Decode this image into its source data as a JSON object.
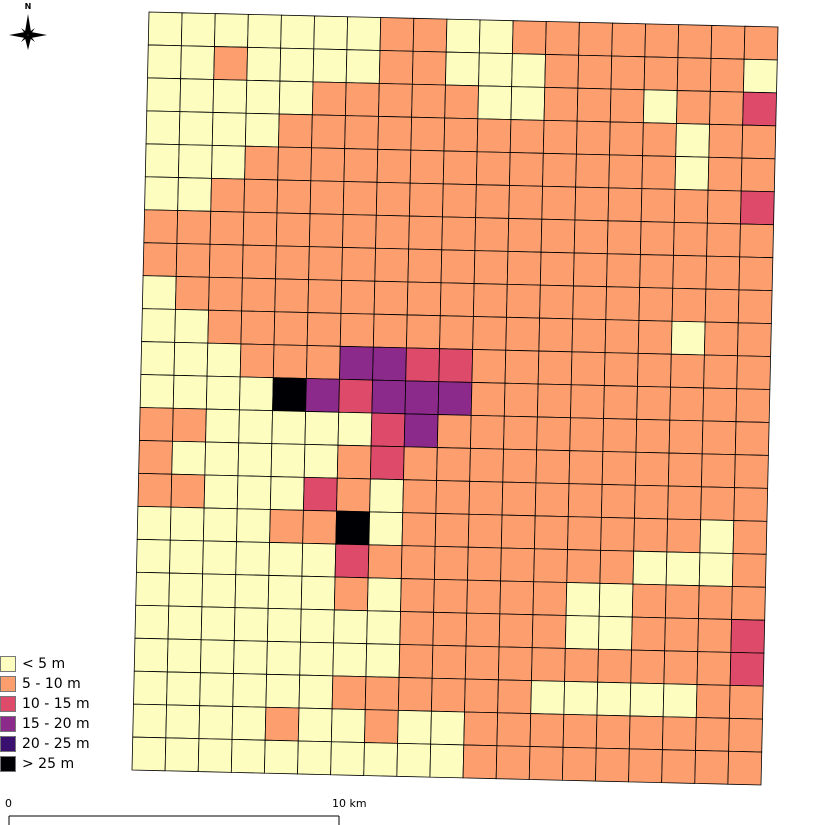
{
  "north_arrow": {
    "label": "N",
    "icon": "compass-rose-icon"
  },
  "legend": {
    "items": [
      {
        "label": "< 5 m",
        "color": "#fcfdbf"
      },
      {
        "label": "5 - 10 m",
        "color": "#fc9e6e"
      },
      {
        "label": "10 - 15 m",
        "color": "#dd4a6a"
      },
      {
        "label": "15 - 20 m",
        "color": "#8c2a8c"
      },
      {
        "label": "20 - 25 m",
        "color": "#3b0f70"
      },
      {
        "label": "> 25 m",
        "color": "#000004"
      }
    ]
  },
  "scale_bar": {
    "start_label": "0",
    "end_label": "10 km"
  },
  "grid": {
    "cols": 19,
    "rows": 23,
    "rows_data": [
      "0000000110011111111",
      "0010000110001111110",
      "0000011111001110112",
      "0000111111111111011",
      "0001111111111111011",
      "0011111111111111112",
      "1111111111111111111",
      "1111111111111111111",
      "0111111111111111111",
      "0011111111111111011",
      "0001113322111111111",
      "0000532333111111111",
      "1100000231111111111",
      "1000001211111111111",
      "1100021011111111111",
      "0000115011111111101",
      "0000002111111110001",
      "0000001011111001111",
      "0000000011111001112",
      "0000000011111111112",
      "0000001111110000011",
      "0000100100111111111",
      "0000000000111111111"
    ]
  }
}
